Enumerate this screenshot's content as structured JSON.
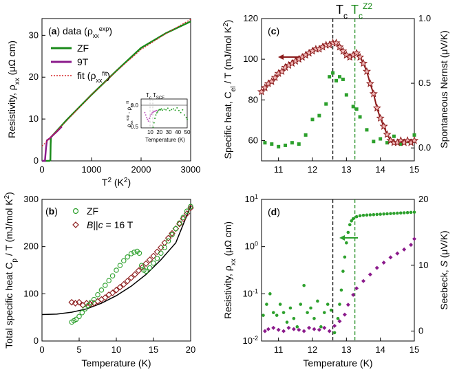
{
  "chart_data": [
    {
      "id": "a",
      "type": "line",
      "panel_label": "a",
      "header": "data",
      "xlabel": "T² (K²)",
      "ylabel": "Resistivity, ρxx (μΩ cm)",
      "xlim": [
        0,
        3000
      ],
      "ylim": [
        0,
        34
      ],
      "xticks": [
        "0",
        "1000",
        "2000",
        "3000"
      ],
      "yticks": [
        "0",
        "10",
        "20",
        "30"
      ],
      "legend": [
        "ZF",
        "9T",
        "fit (ρxx^fit)"
      ],
      "colors": {
        "ZF": "#1a8a1a",
        "9T": "#8b1a8b",
        "fit": "#d62728"
      },
      "series": [
        {
          "name": "ZF",
          "x": [
            0,
            150,
            170,
            175,
            180,
            200,
            300,
            500,
            1000,
            1500,
            2000,
            2500,
            3000
          ],
          "y": [
            0,
            0,
            0.2,
            4.0,
            5.6,
            5.9,
            7.2,
            9.8,
            15.8,
            21.5,
            27.0,
            30.5,
            33.3
          ]
        },
        {
          "name": "9T",
          "x": [
            0,
            60,
            80,
            100,
            150,
            200,
            300,
            400
          ],
          "y": [
            0,
            0,
            3.0,
            4.9,
            5.3,
            5.9,
            7.0,
            8.2
          ]
        },
        {
          "name": "fit (ρxx^fit)",
          "x": [
            0,
            500,
            1000,
            1500,
            2000,
            2500,
            3000
          ],
          "y": [
            3.5,
            9.6,
            15.8,
            21.4,
            26.6,
            30.4,
            33.8
          ]
        }
      ],
      "inset": {
        "xlabel": "Temperature (K)",
        "ylabel": "ρxx^exp - ρxx^fit",
        "top_labels": [
          "Tc",
          "TSCF"
        ],
        "xlim": [
          0,
          50
        ],
        "ylim": [
          -0.5,
          0.35
        ],
        "xticks": [
          "10",
          "20",
          "30",
          "40",
          "50"
        ],
        "yticks": [
          "0.0",
          "-0.5"
        ],
        "series": [
          {
            "name": "ZF",
            "x": [
              13,
              14,
              15,
              16,
              17,
              18,
              19,
              20,
              21,
              22,
              23,
              25,
              27,
              29,
              31,
              33,
              35,
              37,
              39,
              41,
              43,
              45,
              47,
              49,
              50
            ],
            "y": [
              -0.48,
              -0.35,
              -0.22,
              -0.12,
              -0.06,
              -0.03,
              0.02,
              0.04,
              0.03,
              0.06,
              0.02,
              0.05,
              0.03,
              0.08,
              0.01,
              0.04,
              0.06,
              0.02,
              0.09,
              0.01,
              -0.05,
              0.03,
              -0.12,
              -0.2,
              -0.25
            ]
          },
          {
            "name": "9T",
            "x": [
              4,
              5,
              6,
              7,
              8,
              9,
              10,
              11,
              12,
              13,
              14,
              15,
              16,
              17
            ],
            "y": [
              -0.05,
              -0.12,
              -0.2,
              -0.25,
              -0.3,
              -0.22,
              -0.15,
              -0.1,
              -0.06,
              -0.04,
              -0.02,
              -0.01,
              0.0,
              0.01
            ]
          }
        ]
      }
    },
    {
      "id": "b",
      "type": "scatter",
      "panel_label": "b",
      "xlabel": "Temperature (K)",
      "ylabel": "Total specific heat Cp / T (mJ/mol K²)",
      "xlim": [
        0,
        20
      ],
      "ylim": [
        0,
        300
      ],
      "xticks": [
        "0",
        "5",
        "10",
        "15",
        "20"
      ],
      "yticks": [
        "0",
        "100",
        "200",
        "300"
      ],
      "legend": [
        "ZF",
        "B||c = 16 T"
      ],
      "colors": {
        "ZF": "#2ca02c",
        "B16T": "#8b1a1a",
        "fit": "#000000"
      },
      "series": [
        {
          "name": "ZF",
          "x": [
            4.0,
            4.3,
            4.6,
            5.0,
            5.4,
            5.8,
            6.2,
            6.6,
            7.0,
            7.5,
            8.0,
            8.5,
            9.0,
            9.5,
            10.0,
            10.5,
            11.0,
            11.5,
            12.0,
            12.4,
            12.8,
            13.1,
            13.4,
            13.7,
            14.0,
            14.5,
            15.0,
            15.5,
            16.0,
            16.5,
            17.0,
            17.5,
            18.0,
            18.5,
            19.0,
            19.5,
            20.0
          ],
          "y": [
            40,
            43,
            46,
            52,
            60,
            68,
            75,
            82,
            88,
            98,
            108,
            118,
            128,
            138,
            150,
            160,
            170,
            178,
            185,
            188,
            190,
            186,
            160,
            150,
            148,
            155,
            165,
            175,
            186,
            198,
            212,
            225,
            238,
            250,
            262,
            275,
            285
          ]
        },
        {
          "name": "B||c = 16 T",
          "x": [
            4.0,
            4.5,
            5.0,
            5.5,
            6.0,
            6.5,
            7.0,
            7.5,
            8.0,
            8.5,
            9.0,
            9.5,
            10.0,
            10.5,
            11.0,
            11.5,
            12.0,
            12.5,
            13.0,
            13.5,
            14.0,
            14.5,
            15.0,
            15.5,
            16.0,
            16.5,
            17.0,
            17.5,
            18.0,
            18.5,
            19.0,
            19.5,
            20.0
          ],
          "y": [
            82,
            80,
            82,
            76,
            80,
            78,
            80,
            84,
            88,
            92,
            98,
            102,
            108,
            114,
            120,
            127,
            134,
            141,
            149,
            156,
            164,
            172,
            180,
            189,
            198,
            208,
            218,
            228,
            238,
            248,
            259,
            270,
            282
          ]
        },
        {
          "name": "fit",
          "x": [
            0,
            2,
            4,
            6,
            8,
            10,
            12,
            14,
            16,
            18,
            20
          ],
          "y": [
            56,
            57,
            61,
            68,
            80,
            96,
            116,
            141,
            172,
            208,
            286
          ]
        }
      ]
    },
    {
      "id": "c",
      "type": "scatter",
      "panel_label": "c",
      "top_labels": [
        "Tc",
        "Tc^Z2"
      ],
      "xlabel": "",
      "ylabel": "Specific heat, Cel / T (mJ/mol K²)",
      "ylabel_right": "Spontaneous Nernst (μV/K)",
      "xlim": [
        10.5,
        15
      ],
      "ylim": [
        50,
        120
      ],
      "ylim_right": [
        -0.1,
        1.0
      ],
      "xticks": [
        "11",
        "12",
        "13",
        "14",
        "15"
      ],
      "yticks": [
        "60",
        "80",
        "100",
        "120"
      ],
      "yticks_right": [
        "0.0",
        "0.5",
        "1.0"
      ],
      "vlines": [
        12.6,
        13.25
      ],
      "colors": {
        "heat": "#8b1a1a",
        "nernst": "#2ca02c",
        "tc": "#000000",
        "tz2": "#1a8a1a"
      },
      "series": [
        {
          "name": "Cel/T",
          "x": [
            10.5,
            10.6,
            10.7,
            10.8,
            10.9,
            11.0,
            11.1,
            11.2,
            11.3,
            11.4,
            11.5,
            11.6,
            11.7,
            11.8,
            11.9,
            12.0,
            12.1,
            12.2,
            12.3,
            12.4,
            12.5,
            12.6,
            12.7,
            12.8,
            12.9,
            13.0,
            13.1,
            13.2,
            13.3,
            13.4,
            13.5,
            13.6,
            13.7,
            13.8,
            13.9,
            14.0,
            14.1,
            14.2,
            14.3,
            14.4,
            14.5,
            14.6,
            14.7,
            14.8,
            14.9,
            15.0
          ],
          "y": [
            84,
            86,
            88,
            89,
            91,
            93,
            94,
            96,
            97,
            98,
            99,
            100,
            101,
            102,
            103,
            104,
            105,
            105,
            106,
            107,
            107,
            108,
            108,
            106,
            104,
            102,
            101,
            102,
            103,
            101,
            98,
            94,
            88,
            83,
            76,
            71,
            67,
            63,
            60,
            59,
            59,
            60,
            59,
            60,
            59,
            60
          ]
        },
        {
          "name": "Spontaneous Nernst",
          "x": [
            10.6,
            10.8,
            11.0,
            11.2,
            11.4,
            11.6,
            11.8,
            12.0,
            12.2,
            12.4,
            12.5,
            12.6,
            12.7,
            12.8,
            12.9,
            13.0,
            13.2,
            13.3,
            13.4,
            13.6,
            13.8,
            14.0,
            14.2,
            14.4,
            14.6,
            14.8,
            15.0
          ],
          "y": [
            0.04,
            0.03,
            0.01,
            0.02,
            0.04,
            0.03,
            0.1,
            0.22,
            0.25,
            0.34,
            0.55,
            0.58,
            0.52,
            0.55,
            0.53,
            0.41,
            0.32,
            0.3,
            0.24,
            0.14,
            0.05,
            0.07,
            0.04,
            0.09,
            0.03,
            0.05,
            0.1
          ]
        }
      ]
    },
    {
      "id": "d",
      "type": "scatter",
      "panel_label": "d",
      "xlabel": "Temperature (K)",
      "ylabel": "Resistivity, ρxx (μΩ cm)",
      "ylabel_right": "Seebeck, S (μV/K)",
      "xlim": [
        10.5,
        15
      ],
      "ylog": true,
      "ylim": [
        0.01,
        10
      ],
      "ylim_right": [
        -1.5,
        20
      ],
      "xticks": [
        "11",
        "12",
        "13",
        "14",
        "15"
      ],
      "yticks": [
        "10^-2",
        "10^-1",
        "10^0",
        "10^1"
      ],
      "yticks_right": [
        "0",
        "10",
        "20"
      ],
      "vlines": [
        12.6,
        13.25
      ],
      "colors": {
        "rho": "#2ca02c",
        "seebeck": "#8b1a8b"
      },
      "series": [
        {
          "name": "ρxx",
          "x": [
            10.55,
            10.65,
            10.75,
            10.85,
            10.95,
            11.05,
            11.15,
            11.25,
            11.35,
            11.45,
            11.55,
            11.65,
            11.75,
            11.85,
            11.95,
            12.05,
            12.15,
            12.25,
            12.35,
            12.45,
            12.55,
            12.65,
            12.75,
            12.8,
            12.85,
            12.9,
            12.95,
            13.0,
            13.05,
            13.1,
            13.15,
            13.2,
            13.3,
            13.4,
            13.5,
            13.6,
            13.7,
            13.8,
            13.9,
            14.0,
            14.1,
            14.2,
            14.3,
            14.4,
            14.5,
            14.6,
            14.7,
            14.8,
            14.9,
            15.0
          ],
          "y": [
            0.035,
            0.06,
            0.1,
            0.04,
            0.035,
            0.06,
            0.04,
            0.025,
            0.05,
            0.03,
            0.02,
            0.06,
            0.15,
            0.04,
            0.05,
            0.03,
            0.07,
            0.02,
            0.04,
            0.06,
            0.045,
            0.015,
            0.03,
            0.06,
            0.12,
            0.3,
            0.6,
            1.2,
            2.0,
            2.9,
            3.5,
            3.9,
            4.3,
            4.5,
            4.6,
            4.65,
            4.7,
            4.75,
            4.8,
            4.85,
            4.9,
            4.95,
            5.0,
            5.05,
            5.1,
            5.15,
            5.2,
            5.25,
            5.3,
            5.35
          ]
        },
        {
          "name": "Seebeck S",
          "x": [
            10.6,
            10.7,
            10.85,
            11.0,
            11.15,
            11.3,
            11.45,
            11.6,
            11.75,
            11.9,
            12.05,
            12.2,
            12.35,
            12.5,
            12.65,
            12.8,
            12.95,
            13.05,
            13.2,
            13.3,
            13.5,
            13.7,
            13.9,
            14.1,
            14.3,
            14.5,
            14.7,
            14.9,
            15.0
          ],
          "y": [
            0.0,
            0.3,
            0.5,
            0.2,
            0.0,
            0.5,
            0.3,
            0.2,
            0.0,
            0.5,
            0.3,
            0.2,
            0.5,
            0.0,
            0.8,
            1.5,
            2.5,
            4.0,
            5.5,
            6.5,
            7.6,
            8.6,
            9.6,
            10.4,
            11.2,
            11.8,
            12.4,
            13.1,
            14.0
          ]
        }
      ]
    }
  ]
}
